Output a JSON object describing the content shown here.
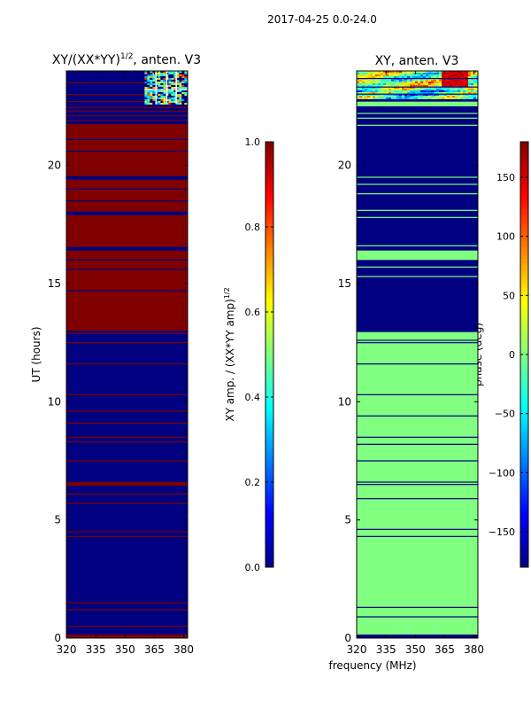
{
  "figure": {
    "suptitle": "2017-04-25 0.0-24.0",
    "shared_xlabel": "frequency (MHz)"
  },
  "chart_data": [
    {
      "type": "heatmap",
      "title": "XY/(XX*YY)^{1/2}, anten. V3",
      "title_main": "XY/(XX*YY)",
      "title_sup": "1/2",
      "title_tail": ", anten. V3",
      "xlabel": "",
      "ylabel": "UT (hours)",
      "xlim": [
        320,
        382
      ],
      "ylim": [
        0,
        24
      ],
      "xticks": [
        320,
        335,
        350,
        365,
        380
      ],
      "yticks": [
        0,
        5,
        10,
        15,
        20
      ],
      "colorbar": {
        "label": "XY amp. / (XX*YY amp)^{1/2}",
        "label_main": "XY amp. / (XX*YY amp)",
        "label_sup": "1/2",
        "range": [
          0.0,
          1.0
        ],
        "ticks": [
          "0.0",
          "0.2",
          "0.4",
          "0.6",
          "0.8",
          "1.0"
        ],
        "tick_values": [
          0.0,
          0.2,
          0.4,
          0.6,
          0.8,
          1.0
        ],
        "colormap": "jet"
      },
      "background_value": 0.0,
      "bands": [
        {
          "from": 0.0,
          "to": 0.15,
          "value": 1.0
        },
        {
          "from": 13.0,
          "to": 16.4,
          "value": 1.0
        },
        {
          "from": 16.55,
          "to": 17.9,
          "value": 1.0
        },
        {
          "from": 18.05,
          "to": 19.4,
          "value": 1.0
        },
        {
          "from": 19.55,
          "to": 21.75,
          "value": 1.0
        },
        {
          "from": 6.45,
          "to": 6.6,
          "value": 1.0
        }
      ],
      "lines": [
        {
          "at": 0.5,
          "value": 1.0
        },
        {
          "at": 1.2,
          "value": 1.0
        },
        {
          "at": 1.5,
          "value": 1.0
        },
        {
          "at": 4.3,
          "value": 1.0
        },
        {
          "at": 4.5,
          "value": 1.0
        },
        {
          "at": 5.7,
          "value": 1.0
        },
        {
          "at": 6.1,
          "value": 1.0
        },
        {
          "at": 7.5,
          "value": 1.0
        },
        {
          "at": 8.3,
          "value": 1.0
        },
        {
          "at": 8.5,
          "value": 1.0
        },
        {
          "at": 9.1,
          "value": 1.0
        },
        {
          "at": 9.6,
          "value": 1.0
        },
        {
          "at": 10.3,
          "value": 1.0
        },
        {
          "at": 11.6,
          "value": 1.0
        },
        {
          "at": 12.5,
          "value": 1.0
        },
        {
          "at": 12.9,
          "value": 1.0
        },
        {
          "at": 14.7,
          "value": 0.0
        },
        {
          "at": 15.6,
          "value": 0.0
        },
        {
          "at": 16.0,
          "value": 0.0
        },
        {
          "at": 18.5,
          "value": 0.0
        },
        {
          "at": 19.0,
          "value": 0.0
        },
        {
          "at": 20.6,
          "value": 0.0
        },
        {
          "at": 21.1,
          "value": 0.0
        },
        {
          "at": 21.9,
          "value": 1.0
        },
        {
          "at": 22.1,
          "value": 1.0
        },
        {
          "at": 22.3,
          "value": 1.0
        },
        {
          "at": 22.45,
          "value": 1.0
        },
        {
          "at": 22.7,
          "value": 1.0
        },
        {
          "at": 23.0,
          "value": 1.0
        },
        {
          "at": 23.5,
          "value": 1.0
        }
      ],
      "noise_region": {
        "x_from": 360,
        "x_to": 382,
        "y_from": 22.6,
        "y_to": 24.0,
        "style": "mixed"
      }
    },
    {
      "type": "heatmap",
      "title": "XY, anten. V3",
      "xlabel": "frequency (MHz)",
      "ylabel": "",
      "xlim": [
        320,
        382
      ],
      "ylim": [
        0,
        24
      ],
      "xticks": [
        320,
        335,
        350,
        365,
        380
      ],
      "yticks": [
        0,
        5,
        10,
        15,
        20
      ],
      "colorbar": {
        "label": "phase (deg)",
        "range": [
          -180,
          180
        ],
        "ticks": [
          "−150",
          "−100",
          "−50",
          "0",
          "50",
          "100",
          "150"
        ],
        "tick_values": [
          -150,
          -100,
          -50,
          0,
          50,
          100,
          150
        ],
        "colormap": "jet"
      },
      "background_value": -180,
      "bands": [
        {
          "from": 0.0,
          "to": 0.15,
          "value": -180
        },
        {
          "from": 0.15,
          "to": 12.95,
          "value": 0
        },
        {
          "from": 16.0,
          "to": 16.4,
          "value": 0
        },
        {
          "from": 22.5,
          "to": 22.7,
          "value": 0
        }
      ],
      "lines": [
        {
          "at": 0.9,
          "value": -180
        },
        {
          "at": 1.3,
          "value": -180
        },
        {
          "at": 4.3,
          "value": -180
        },
        {
          "at": 4.6,
          "value": -180
        },
        {
          "at": 5.9,
          "value": -180
        },
        {
          "at": 6.5,
          "value": -180
        },
        {
          "at": 6.6,
          "value": -180
        },
        {
          "at": 7.5,
          "value": -180
        },
        {
          "at": 8.2,
          "value": -180
        },
        {
          "at": 8.5,
          "value": -180
        },
        {
          "at": 9.4,
          "value": -180
        },
        {
          "at": 10.3,
          "value": -180
        },
        {
          "at": 11.6,
          "value": -180
        },
        {
          "at": 12.5,
          "value": -180
        },
        {
          "at": 12.6,
          "value": -180
        },
        {
          "at": 15.3,
          "value": 0
        },
        {
          "at": 15.7,
          "value": 0
        },
        {
          "at": 16.6,
          "value": 0
        },
        {
          "at": 17.8,
          "value": 0
        },
        {
          "at": 18.1,
          "value": 0
        },
        {
          "at": 18.8,
          "value": 0
        },
        {
          "at": 19.2,
          "value": 0
        },
        {
          "at": 19.5,
          "value": 0
        },
        {
          "at": 21.7,
          "value": 0
        },
        {
          "at": 22.0,
          "value": 0
        },
        {
          "at": 22.2,
          "value": 0
        }
      ],
      "noise_region": {
        "x_from": 320,
        "x_to": 382,
        "y_from": 22.8,
        "y_to": 24.0,
        "style": "phase"
      }
    }
  ]
}
